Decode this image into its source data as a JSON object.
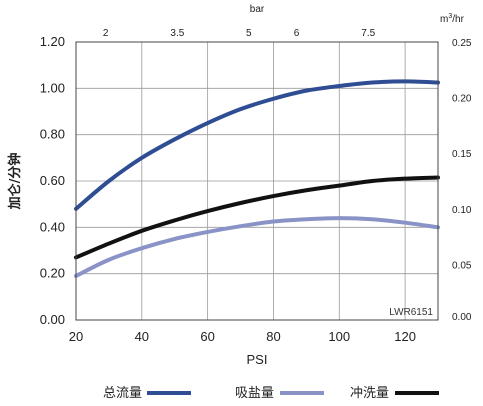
{
  "chart_data": {
    "type": "line",
    "xlabel": "PSI",
    "ylabel": "加仑/分钟",
    "x_ticks": [
      20,
      40,
      60,
      80,
      100,
      120
    ],
    "y_ticks": [
      "0.00",
      "0.20",
      "0.40",
      "0.60",
      "0.80",
      "1.00",
      "1.20"
    ],
    "xlim": [
      20,
      130
    ],
    "ylim": [
      0,
      1.2
    ],
    "top_axis": {
      "label": "bar",
      "ticks": [
        {
          "label": "2",
          "psi": 29
        },
        {
          "label": "3.5",
          "psi": 50.8
        },
        {
          "label": "5",
          "psi": 72.5
        },
        {
          "label": "6",
          "psi": 87
        },
        {
          "label": "7.5",
          "psi": 108.8
        }
      ]
    },
    "right_axis": {
      "label": "m",
      "label_sup": "3",
      "label_suffix": "/hr",
      "ticks": [
        "0.00",
        "0.05",
        "0.10",
        "0.15",
        "0.20",
        "0.25"
      ],
      "lim": [
        0,
        0.25
      ]
    },
    "grid": true,
    "legend_position": "bottom",
    "annotation": "LWR6151",
    "series": [
      {
        "name": "总流量",
        "color": "#2e4d93",
        "x": [
          20,
          30,
          40,
          50,
          60,
          70,
          80,
          90,
          100,
          110,
          120,
          130
        ],
        "values": [
          0.48,
          0.6,
          0.7,
          0.78,
          0.85,
          0.91,
          0.955,
          0.99,
          1.01,
          1.025,
          1.03,
          1.025
        ]
      },
      {
        "name": "吸盐量",
        "color": "#8a93c7",
        "x": [
          20,
          30,
          40,
          50,
          60,
          70,
          80,
          90,
          100,
          110,
          120,
          130
        ],
        "values": [
          0.19,
          0.26,
          0.31,
          0.35,
          0.38,
          0.405,
          0.425,
          0.435,
          0.44,
          0.435,
          0.42,
          0.4
        ]
      },
      {
        "name": "冲洗量",
        "color": "#111111",
        "x": [
          20,
          30,
          40,
          50,
          60,
          70,
          80,
          90,
          100,
          110,
          120,
          130
        ],
        "values": [
          0.27,
          0.33,
          0.385,
          0.43,
          0.47,
          0.505,
          0.535,
          0.56,
          0.58,
          0.6,
          0.61,
          0.615
        ]
      }
    ]
  }
}
